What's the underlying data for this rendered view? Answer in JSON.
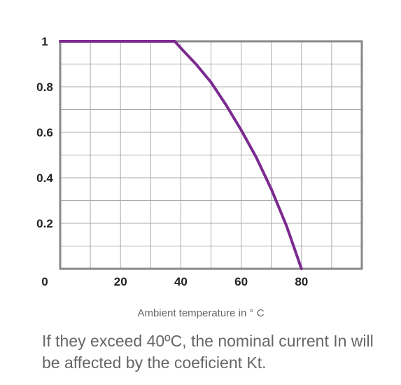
{
  "chart_data": {
    "type": "line",
    "title": "",
    "xlabel": "Ambient temperature in ° C",
    "ylabel": "",
    "xlim": [
      0,
      100
    ],
    "ylim": [
      0,
      1
    ],
    "x_ticks": [
      {
        "value": 0,
        "label": "0"
      },
      {
        "value": 20,
        "label": "20"
      },
      {
        "value": 40,
        "label": "40"
      },
      {
        "value": 60,
        "label": "60"
      },
      {
        "value": 80,
        "label": "80"
      }
    ],
    "y_ticks": [
      {
        "value": 0,
        "label": "0"
      },
      {
        "value": 0.2,
        "label": "0.2"
      },
      {
        "value": 0.4,
        "label": "0.4"
      },
      {
        "value": 0.6,
        "label": "0.6"
      },
      {
        "value": 0.8,
        "label": "0.8"
      },
      {
        "value": 1,
        "label": "1"
      }
    ],
    "grid": true,
    "series": [
      {
        "x": [
          0,
          10,
          20,
          30,
          38,
          40,
          45,
          50,
          55,
          60,
          65,
          70,
          75,
          80
        ],
        "y": [
          1,
          1,
          1,
          1,
          1,
          0.97,
          0.9,
          0.82,
          0.72,
          0.61,
          0.49,
          0.35,
          0.19,
          0
        ]
      }
    ],
    "colors": {
      "line": "#7b2a90",
      "grid": "#aaaaaa",
      "axis": "#888888"
    }
  },
  "caption": "If they exceed 40ºC, the nominal current In will be affected by the coeficient Kt."
}
